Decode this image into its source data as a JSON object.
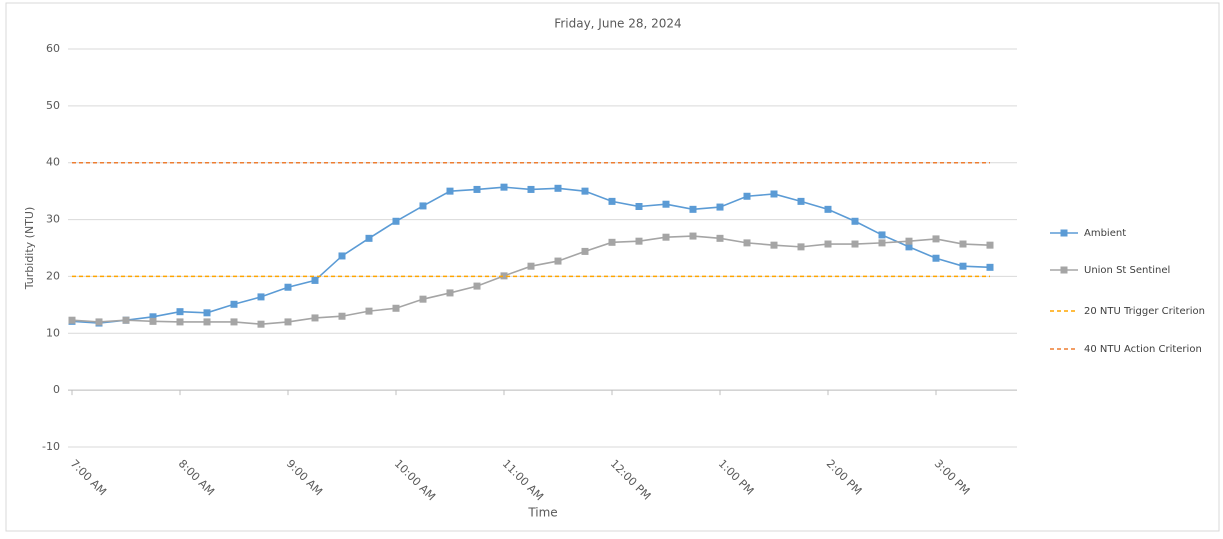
{
  "chart_data": {
    "type": "line",
    "title": "Friday, June 28, 2024",
    "x_label": "Time",
    "y_label": "Turbidity (NTU)",
    "x": [
      7,
      7.25,
      7.5,
      7.75,
      8,
      8.25,
      8.5,
      8.75,
      9,
      9.25,
      9.5,
      9.75,
      10,
      10.25,
      10.5,
      10.75,
      11,
      11.25,
      11.5,
      11.75,
      12,
      12.25,
      12.5,
      12.75,
      13,
      13.25,
      13.5,
      13.75,
      14,
      14.25,
      14.5,
      14.75,
      15,
      15.25,
      15.5
    ],
    "xlim": [
      7,
      15.75
    ],
    "xticks": [
      {
        "value": 7,
        "label": "7:00 AM"
      },
      {
        "value": 8,
        "label": "8:00 AM"
      },
      {
        "value": 9,
        "label": "9:00 AM"
      },
      {
        "value": 10,
        "label": "10:00 AM"
      },
      {
        "value": 11,
        "label": "11:00 AM"
      },
      {
        "value": 12,
        "label": "12:00 PM"
      },
      {
        "value": 13,
        "label": "1:00 PM"
      },
      {
        "value": 14,
        "label": "2:00 PM"
      },
      {
        "value": 15,
        "label": "3:00 PM"
      }
    ],
    "ylim": [
      -10,
      60
    ],
    "yticks": [
      -10,
      0,
      10,
      20,
      30,
      40,
      50,
      60
    ],
    "grid": true,
    "legend": "right",
    "series": [
      {
        "name": "Ambient",
        "color": "#5b9bd5",
        "marker": true,
        "dashed": false,
        "values": [
          12.1,
          11.8,
          12.3,
          12.9,
          13.8,
          13.6,
          15.1,
          16.4,
          18.1,
          19.3,
          23.6,
          26.7,
          29.7,
          32.4,
          35,
          35.3,
          35.7,
          35.3,
          35.5,
          35,
          33.2,
          32.3,
          32.7,
          31.8,
          32.2,
          34.1,
          34.5,
          33.2,
          31.8,
          29.7,
          27.3,
          25.2,
          23.2,
          21.8,
          21.6
        ]
      },
      {
        "name": "Union St Sentinel",
        "color": "#a5a5a5",
        "marker": true,
        "dashed": false,
        "values": [
          12.3,
          12,
          12.3,
          12.1,
          12,
          12,
          12,
          11.6,
          12,
          12.7,
          13,
          13.9,
          14.4,
          16,
          17.1,
          18.3,
          20.1,
          21.8,
          22.7,
          24.4,
          26,
          26.2,
          26.9,
          27.1,
          26.7,
          25.9,
          25.5,
          25.2,
          25.7,
          25.7,
          25.9,
          26.2,
          26.6,
          25.7,
          25.5
        ]
      },
      {
        "name": "20 NTU Trigger Criterion",
        "color": "#ffa500",
        "marker": false,
        "dashed": true,
        "values": [
          20,
          20,
          20,
          20,
          20,
          20,
          20,
          20,
          20,
          20,
          20,
          20,
          20,
          20,
          20,
          20,
          20,
          20,
          20,
          20,
          20,
          20,
          20,
          20,
          20,
          20,
          20,
          20,
          20,
          20,
          20,
          20,
          20,
          20,
          20
        ]
      },
      {
        "name": "40 NTU Action Criterion",
        "color": "#ed7d31",
        "marker": false,
        "dashed": true,
        "values": [
          40,
          40,
          40,
          40,
          40,
          40,
          40,
          40,
          40,
          40,
          40,
          40,
          40,
          40,
          40,
          40,
          40,
          40,
          40,
          40,
          40,
          40,
          40,
          40,
          40,
          40,
          40,
          40,
          40,
          40,
          40,
          40,
          40,
          40,
          40
        ]
      }
    ]
  }
}
